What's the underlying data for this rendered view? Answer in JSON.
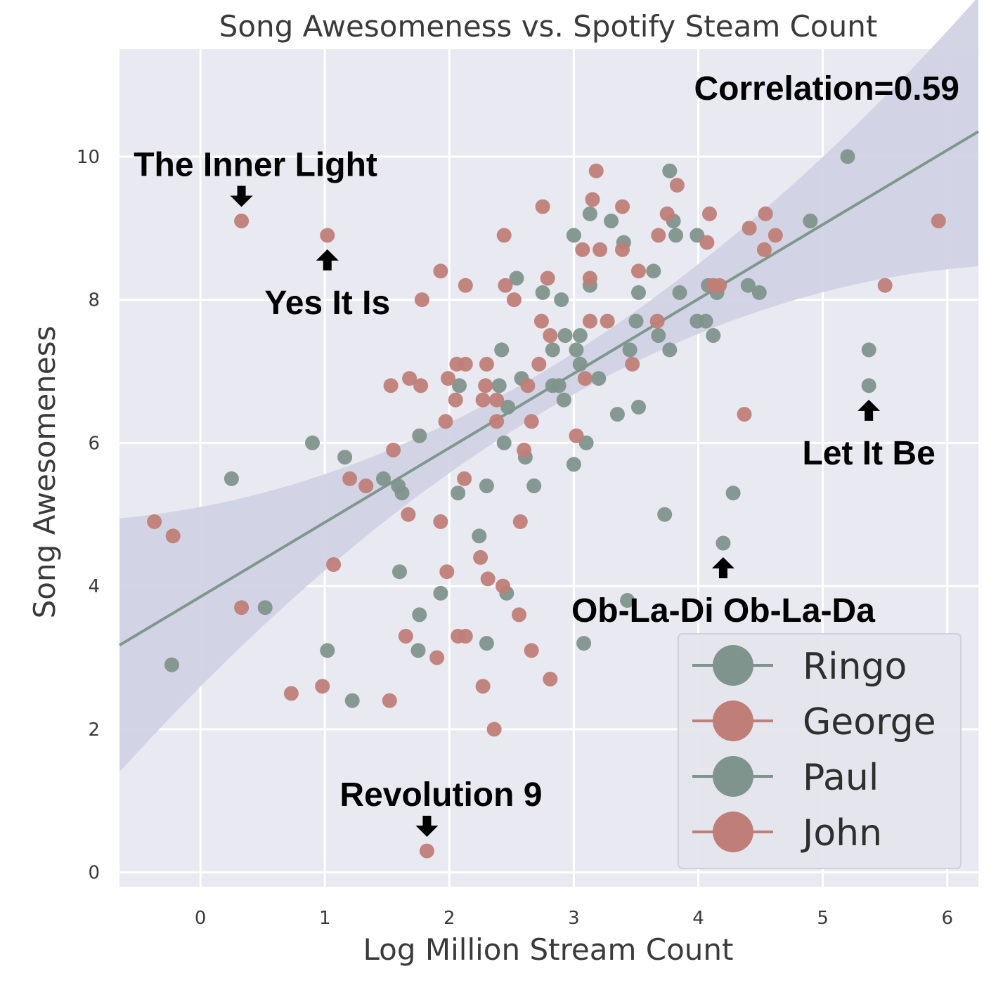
{
  "chart_data": {
    "type": "scatter",
    "title": "Song Awesomeness vs. Spotify Steam Count",
    "xlabel": "Log Million Stream Count",
    "ylabel": "Song Awesomeness",
    "xlim": [
      -0.65,
      6.25
    ],
    "ylim": [
      -0.2,
      11.5
    ],
    "xticks": [
      0,
      1,
      2,
      3,
      4,
      5,
      6
    ],
    "yticks": [
      0,
      2,
      4,
      6,
      8,
      10
    ],
    "grid": true,
    "legend_position": "bottom-right",
    "correlation_text": "Correlation=0.59",
    "regression": {
      "intercept": 3.85,
      "slope": 1.04
    },
    "colors": {
      "background": "#e9e9f1",
      "grid": "#ffffff",
      "green": "#7f948c",
      "red": "#bf7e77",
      "band": "#d1d3e4",
      "line": "#7f978d"
    },
    "series": [
      {
        "name": "Ringo",
        "color": "#7f948c",
        "points": [
          [
            -0.23,
            2.9
          ],
          [
            0.25,
            5.5
          ],
          [
            0.52,
            3.7
          ],
          [
            1.02,
            3.1
          ],
          [
            1.22,
            2.4
          ],
          [
            1.75,
            3.1
          ],
          [
            2.3,
            3.2
          ],
          [
            3.08,
            3.2
          ],
          [
            3.43,
            3.8
          ],
          [
            4.2,
            4.6
          ],
          [
            4.28,
            5.3
          ],
          [
            3.73,
            5.0
          ]
        ]
      },
      {
        "name": "George",
        "color": "#bf7e77",
        "points": [
          [
            -0.37,
            4.9
          ],
          [
            -0.22,
            4.7
          ],
          [
            0.33,
            3.7
          ],
          [
            0.73,
            2.5
          ],
          [
            0.98,
            2.6
          ],
          [
            1.07,
            4.3
          ],
          [
            1.52,
            2.4
          ],
          [
            1.65,
            3.3
          ],
          [
            1.9,
            3.0
          ],
          [
            2.07,
            3.3
          ],
          [
            2.13,
            3.3
          ],
          [
            2.27,
            2.6
          ],
          [
            2.36,
            2.0
          ],
          [
            2.66,
            3.1
          ],
          [
            2.81,
            2.7
          ],
          [
            1.82,
            0.3
          ]
        ]
      },
      {
        "name": "Paul",
        "color": "#7f948c",
        "points": [
          [
            0.9,
            6.0
          ],
          [
            1.16,
            5.8
          ],
          [
            1.47,
            5.5
          ],
          [
            1.59,
            5.4
          ],
          [
            1.62,
            5.3
          ],
          [
            1.6,
            4.2
          ],
          [
            1.76,
            3.6
          ],
          [
            1.76,
            6.1
          ],
          [
            1.93,
            3.9
          ],
          [
            2.07,
            5.3
          ],
          [
            2.08,
            6.8
          ],
          [
            2.24,
            4.7
          ],
          [
            2.3,
            5.4
          ],
          [
            2.4,
            6.8
          ],
          [
            2.42,
            7.3
          ],
          [
            2.44,
            6.0
          ],
          [
            2.47,
            6.5
          ],
          [
            2.46,
            3.9
          ],
          [
            2.54,
            8.3
          ],
          [
            2.58,
            6.9
          ],
          [
            2.61,
            5.8
          ],
          [
            2.68,
            5.4
          ],
          [
            2.75,
            8.1
          ],
          [
            2.83,
            6.8
          ],
          [
            2.83,
            7.3
          ],
          [
            2.88,
            6.8
          ],
          [
            2.9,
            8.0
          ],
          [
            2.92,
            6.6
          ],
          [
            2.93,
            7.5
          ],
          [
            3.0,
            8.9
          ],
          [
            3.0,
            5.7
          ],
          [
            3.02,
            7.3
          ],
          [
            3.05,
            7.1
          ],
          [
            3.05,
            7.5
          ],
          [
            3.1,
            6.0
          ],
          [
            3.13,
            8.2
          ],
          [
            3.13,
            9.2
          ],
          [
            3.2,
            6.9
          ],
          [
            3.3,
            9.1
          ],
          [
            3.35,
            6.4
          ],
          [
            3.4,
            8.8
          ],
          [
            3.45,
            7.3
          ],
          [
            3.5,
            7.7
          ],
          [
            3.52,
            6.5
          ],
          [
            3.52,
            8.1
          ],
          [
            3.64,
            8.4
          ],
          [
            3.68,
            7.5
          ],
          [
            3.77,
            7.3
          ],
          [
            3.77,
            9.8
          ],
          [
            3.8,
            9.1
          ],
          [
            3.85,
            8.1
          ],
          [
            3.82,
            8.9
          ],
          [
            3.99,
            7.7
          ],
          [
            3.99,
            8.9
          ],
          [
            4.06,
            7.7
          ],
          [
            4.08,
            8.2
          ],
          [
            4.12,
            7.5
          ],
          [
            4.15,
            8.1
          ],
          [
            4.4,
            8.2
          ],
          [
            4.49,
            8.1
          ],
          [
            4.9,
            9.1
          ],
          [
            5.2,
            10.0
          ],
          [
            5.37,
            7.3
          ],
          [
            5.37,
            6.8
          ]
        ]
      },
      {
        "name": "John",
        "color": "#bf7e77",
        "points": [
          [
            0.33,
            9.1
          ],
          [
            1.02,
            8.9
          ],
          [
            1.2,
            5.5
          ],
          [
            1.33,
            5.4
          ],
          [
            1.53,
            6.8
          ],
          [
            1.55,
            5.9
          ],
          [
            1.67,
            5.0
          ],
          [
            1.68,
            6.9
          ],
          [
            1.77,
            6.8
          ],
          [
            1.78,
            8.0
          ],
          [
            1.93,
            4.9
          ],
          [
            1.93,
            8.4
          ],
          [
            1.97,
            6.3
          ],
          [
            1.98,
            4.2
          ],
          [
            1.99,
            6.9
          ],
          [
            2.05,
            6.6
          ],
          [
            2.06,
            7.1
          ],
          [
            2.12,
            5.5
          ],
          [
            2.13,
            7.1
          ],
          [
            2.13,
            8.2
          ],
          [
            2.25,
            4.4
          ],
          [
            2.27,
            6.6
          ],
          [
            2.29,
            6.8
          ],
          [
            2.3,
            7.1
          ],
          [
            2.31,
            4.1
          ],
          [
            2.38,
            6.6
          ],
          [
            2.38,
            6.3
          ],
          [
            2.43,
            4.0
          ],
          [
            2.44,
            8.9
          ],
          [
            2.45,
            8.2
          ],
          [
            2.52,
            8.0
          ],
          [
            2.56,
            3.6
          ],
          [
            2.57,
            4.9
          ],
          [
            2.6,
            5.9
          ],
          [
            2.63,
            6.8
          ],
          [
            2.66,
            6.3
          ],
          [
            2.72,
            7.1
          ],
          [
            2.74,
            7.7
          ],
          [
            2.75,
            9.3
          ],
          [
            2.79,
            8.3
          ],
          [
            2.81,
            7.5
          ],
          [
            3.02,
            6.1
          ],
          [
            3.07,
            8.7
          ],
          [
            3.09,
            6.9
          ],
          [
            3.13,
            7.7
          ],
          [
            3.13,
            8.3
          ],
          [
            3.15,
            9.4
          ],
          [
            3.18,
            9.8
          ],
          [
            3.21,
            8.7
          ],
          [
            3.27,
            7.7
          ],
          [
            3.39,
            8.7
          ],
          [
            3.39,
            9.3
          ],
          [
            3.47,
            7.1
          ],
          [
            3.52,
            8.4
          ],
          [
            3.67,
            7.7
          ],
          [
            3.68,
            8.9
          ],
          [
            3.75,
            9.2
          ],
          [
            3.83,
            9.6
          ],
          [
            4.07,
            8.8
          ],
          [
            4.09,
            9.2
          ],
          [
            4.12,
            8.2
          ],
          [
            4.17,
            8.2
          ],
          [
            4.37,
            6.4
          ],
          [
            4.41,
            9.0
          ],
          [
            4.53,
            8.7
          ],
          [
            4.54,
            9.2
          ],
          [
            4.62,
            8.9
          ],
          [
            5.5,
            8.2
          ],
          [
            5.93,
            9.1
          ]
        ]
      }
    ],
    "annotations": [
      {
        "text": "The Inner Light",
        "point": [
          0.33,
          9.1
        ],
        "arrow": "down"
      },
      {
        "text": "Yes It Is",
        "point": [
          1.02,
          8.9
        ],
        "arrow": "up"
      },
      {
        "text": "Let It Be",
        "point": [
          5.37,
          6.8
        ],
        "arrow": "up"
      },
      {
        "text": "Ob-La-Di Ob-La-Da",
        "point": [
          4.2,
          4.6
        ],
        "arrow": "up"
      },
      {
        "text": "Revolution 9",
        "point": [
          1.82,
          0.3
        ],
        "arrow": "down"
      }
    ]
  }
}
